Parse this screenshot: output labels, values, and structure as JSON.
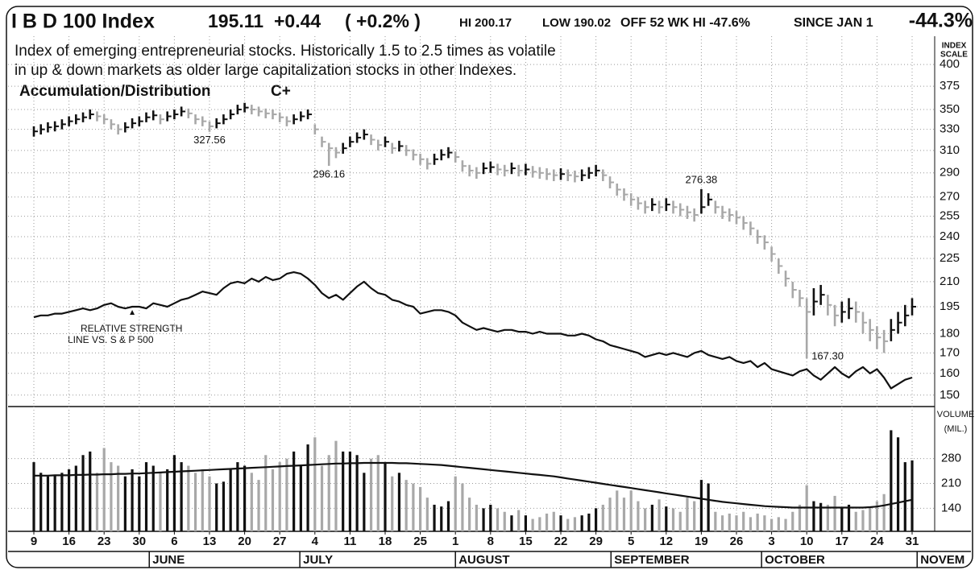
{
  "chart_data": {
    "type": "ohlc",
    "title": "I B D 100 Index",
    "quote": {
      "last": "195.11",
      "change": "+0.44",
      "change_pct": "( +0.2% )",
      "high": "HI 200.17",
      "low": "LOW 190.02",
      "off_high": "OFF 52 WK HI -47.6%",
      "since_label": "SINCE JAN 1",
      "since_value": "-44.3%"
    },
    "description": [
      "Index of emerging entrepreneurial stocks. Historically 1.5 to 2.5 times as volatile",
      "in up & down markets as older large capitalization stocks in other Indexes."
    ],
    "rating_label": "Accumulation/Distribution",
    "rating": "C+",
    "y_axis_label": [
      "INDEX",
      "SCALE"
    ],
    "log_scale": true,
    "grid": true,
    "up_color": "#111111",
    "down_color": "#a8a8a8",
    "ylim": [
      145,
      435
    ],
    "yticks": [
      150,
      160,
      170,
      180,
      195,
      210,
      225,
      240,
      255,
      270,
      290,
      310,
      330,
      350,
      375,
      400
    ],
    "categories": [
      "9",
      null,
      null,
      null,
      null,
      "16",
      null,
      null,
      null,
      null,
      "23",
      null,
      null,
      null,
      null,
      "30",
      null,
      null,
      null,
      null,
      "6",
      null,
      null,
      null,
      null,
      "13",
      null,
      null,
      null,
      null,
      "20",
      null,
      null,
      null,
      null,
      "27",
      null,
      null,
      null,
      null,
      "4",
      null,
      null,
      null,
      null,
      "11",
      null,
      null,
      null,
      null,
      "18",
      null,
      null,
      null,
      null,
      "25",
      null,
      null,
      null,
      null,
      "1",
      null,
      null,
      null,
      null,
      "8",
      null,
      null,
      null,
      null,
      "15",
      null,
      null,
      null,
      null,
      "22",
      null,
      null,
      null,
      null,
      "29",
      null,
      null,
      null,
      null,
      "5",
      null,
      null,
      null,
      null,
      "12",
      null,
      null,
      null,
      null,
      "19",
      null,
      null,
      null,
      null,
      "26",
      null,
      null,
      null,
      null,
      "3",
      null,
      null,
      null,
      null,
      "10",
      null,
      null,
      null,
      null,
      "17",
      null,
      null,
      null,
      null,
      "24",
      null,
      null,
      null,
      null,
      "31"
    ],
    "months": [
      "JUNE",
      "JULY",
      "AUGUST",
      "SEPTEMBER",
      "OCTOBER",
      "NOVEM"
    ],
    "high": [
      333,
      335,
      337,
      338,
      340,
      343,
      345,
      347,
      350,
      348,
      345,
      340,
      335,
      337,
      341,
      343,
      347,
      349,
      345,
      348,
      350,
      353,
      351,
      345,
      343,
      338,
      341,
      345,
      350,
      355,
      357,
      355,
      353,
      351,
      350,
      347,
      343,
      345,
      348,
      350,
      335,
      323,
      317,
      313,
      317,
      323,
      327,
      330,
      325,
      320,
      323,
      317,
      319,
      315,
      311,
      307,
      303,
      307,
      311,
      313,
      309,
      301,
      297,
      295,
      299,
      300,
      298,
      297,
      299,
      297,
      298,
      296,
      295,
      294,
      293,
      294,
      293,
      292,
      293,
      295,
      297,
      293,
      287,
      281,
      277,
      273,
      270,
      267,
      269,
      267,
      269,
      267,
      265,
      263,
      261,
      276.38,
      273,
      267,
      263,
      261,
      259,
      255,
      251,
      245,
      241,
      233,
      225,
      217,
      210,
      205,
      200,
      206,
      208,
      202,
      196,
      198,
      200,
      198,
      192,
      188,
      184,
      182,
      188,
      192,
      196,
      200
    ],
    "low": [
      323,
      325,
      327,
      328,
      330,
      333,
      335,
      337,
      340,
      338,
      335,
      330,
      325,
      327,
      331,
      333,
      337,
      339,
      335,
      338,
      340,
      343,
      341,
      335,
      333,
      327.56,
      331,
      335,
      340,
      345,
      347,
      345,
      343,
      341,
      340,
      337,
      333,
      335,
      338,
      340,
      325,
      313,
      296.16,
      303,
      307,
      313,
      317,
      320,
      315,
      310,
      313,
      307,
      309,
      305,
      301,
      297,
      293,
      297,
      301,
      303,
      299,
      291,
      287,
      285,
      289,
      290,
      288,
      287,
      289,
      287,
      288,
      286,
      285,
      284,
      283,
      284,
      283,
      282,
      283,
      285,
      287,
      283,
      277,
      271,
      267,
      263,
      260,
      257,
      259,
      257,
      259,
      257,
      255,
      253,
      251,
      257,
      263,
      257,
      253,
      251,
      249,
      245,
      241,
      235,
      231,
      223,
      215,
      207,
      200,
      195,
      167.3,
      190,
      196,
      190,
      184,
      186,
      188,
      186,
      180,
      176,
      172,
      170,
      176,
      180,
      184,
      190
    ],
    "close": [
      328,
      330,
      332,
      333,
      335,
      338,
      340,
      342,
      345,
      343,
      340,
      335,
      330,
      332,
      336,
      338,
      342,
      344,
      340,
      343,
      345,
      348,
      346,
      340,
      338,
      333,
      336,
      340,
      345,
      350,
      352,
      350,
      348,
      346,
      345,
      342,
      338,
      340,
      343,
      345,
      330,
      318,
      312,
      308,
      312,
      318,
      322,
      325,
      320,
      315,
      318,
      312,
      314,
      310,
      306,
      302,
      298,
      302,
      306,
      308,
      304,
      296,
      292,
      290,
      294,
      295,
      293,
      292,
      294,
      292,
      293,
      291,
      290,
      289,
      288,
      289,
      288,
      287,
      288,
      290,
      292,
      288,
      282,
      276,
      272,
      268,
      265,
      262,
      264,
      262,
      264,
      262,
      260,
      258,
      256,
      262,
      268,
      262,
      258,
      256,
      254,
      250,
      246,
      240,
      236,
      228,
      220,
      212,
      205,
      200,
      192,
      198,
      202,
      196,
      190,
      192,
      194,
      192,
      186,
      182,
      178,
      176,
      182,
      186,
      190,
      195
    ],
    "annotations": [
      {
        "label": "327.56"
      },
      {
        "label": "296.16"
      },
      {
        "label": "276.38"
      },
      {
        "label": "167.30"
      }
    ],
    "rs_label": [
      "RELATIVE STRENGTH",
      "LINE VS. S & P 500"
    ],
    "rs": [
      189,
      190,
      190,
      191,
      191,
      192,
      193,
      194,
      193,
      194,
      196,
      197,
      195,
      194,
      195,
      195,
      194,
      197,
      196,
      195,
      197,
      199,
      200,
      202,
      204,
      203,
      202,
      206,
      209,
      210,
      209,
      212,
      210,
      213,
      211,
      212,
      215,
      216,
      215,
      212,
      208,
      203,
      200,
      202,
      199,
      203,
      207,
      210,
      206,
      203,
      202,
      199,
      198,
      196,
      195,
      191,
      192,
      193,
      193,
      192,
      190,
      186,
      184,
      182,
      183,
      182,
      181,
      182,
      182,
      181,
      181,
      180,
      181,
      180,
      180,
      180,
      179,
      179,
      180,
      179,
      177,
      176,
      174,
      173,
      172,
      171,
      170,
      168,
      169,
      170,
      169,
      170,
      169,
      168,
      170,
      171,
      169,
      168,
      167,
      168,
      166,
      165,
      166,
      163,
      165,
      162,
      161,
      160,
      159,
      161,
      162,
      159,
      157,
      160,
      163,
      160,
      158,
      161,
      163,
      160,
      162,
      158,
      153,
      155,
      157,
      158
    ],
    "volume": {
      "label": [
        "VOLUME",
        "(MIL.)"
      ],
      "ylim": [
        75,
        420
      ],
      "yticks": [
        140,
        210,
        280
      ],
      "values": [
        270,
        240,
        230,
        235,
        240,
        250,
        260,
        290,
        300,
        240,
        310,
        270,
        260,
        230,
        250,
        230,
        270,
        260,
        240,
        250,
        290,
        270,
        260,
        240,
        250,
        230,
        210,
        215,
        250,
        270,
        260,
        240,
        220,
        290,
        250,
        270,
        280,
        300,
        260,
        320,
        340,
        260,
        290,
        330,
        300,
        300,
        290,
        240,
        280,
        290,
        270,
        230,
        240,
        220,
        210,
        200,
        170,
        150,
        145,
        160,
        230,
        210,
        170,
        150,
        140,
        150,
        140,
        130,
        120,
        135,
        120,
        110,
        115,
        125,
        130,
        120,
        110,
        115,
        120,
        125,
        140,
        150,
        170,
        190,
        170,
        190,
        160,
        140,
        150,
        165,
        145,
        140,
        130,
        170,
        160,
        220,
        210,
        130,
        120,
        125,
        120,
        130,
        115,
        125,
        120,
        110,
        115,
        110,
        130,
        150,
        205,
        160,
        155,
        150,
        175,
        140,
        150,
        130,
        135,
        145,
        160,
        180,
        360,
        340,
        270,
        275
      ],
      "ma": [
        232,
        232,
        232,
        233,
        233,
        233,
        234,
        234,
        235,
        235,
        236,
        236,
        237,
        237,
        238,
        238,
        239,
        240,
        241,
        242,
        243,
        244,
        245,
        246,
        247,
        248,
        249,
        250,
        251,
        252,
        253,
        254,
        255,
        256,
        257,
        258,
        259,
        260,
        261,
        262,
        263,
        264,
        265,
        266,
        266,
        267,
        267,
        268,
        268,
        268,
        268,
        268,
        267,
        267,
        266,
        265,
        264,
        263,
        262,
        260,
        258,
        256,
        254,
        252,
        250,
        248,
        246,
        244,
        242,
        240,
        238,
        236,
        234,
        232,
        230,
        227,
        224,
        221,
        218,
        215,
        212,
        209,
        206,
        203,
        200,
        197,
        194,
        191,
        188,
        185,
        182,
        179,
        176,
        173,
        170,
        167,
        164,
        161,
        158,
        156,
        154,
        152,
        150,
        148,
        146,
        145,
        144,
        143,
        142,
        142,
        142,
        142,
        142,
        142,
        142,
        142,
        142,
        142,
        142,
        143,
        145,
        148,
        152,
        156,
        160,
        164
      ]
    }
  }
}
